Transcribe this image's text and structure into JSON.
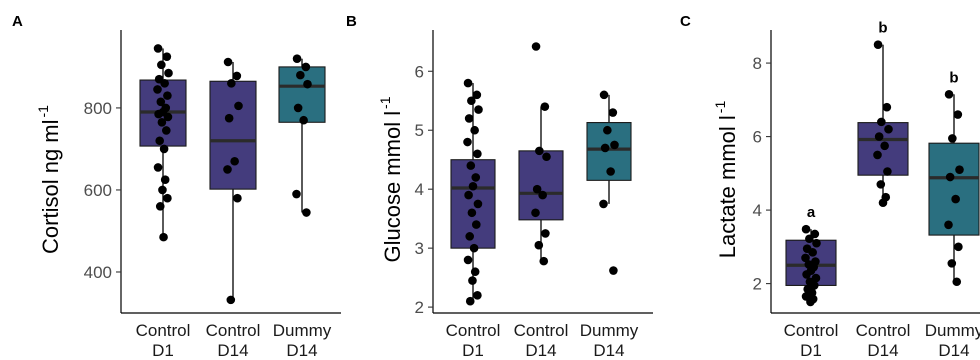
{
  "colors": {
    "control_fill": "#443C7D",
    "dummy_fill": "#2A6F80",
    "point": "#000000",
    "median": "#2B2B2B"
  },
  "chart_data": [
    {
      "type": "box",
      "panel": "A",
      "ylabel": "Cortisol ng ml",
      "ylabel_sup": "-1",
      "ylim": [
        300,
        990
      ],
      "yticks": [
        400,
        600,
        800
      ],
      "groups": [
        {
          "line1": "Control",
          "line2": "D1",
          "color_key": "control_fill",
          "whisker_low": 485,
          "q1": 707,
          "median": 790,
          "q3": 868,
          "whisker_high": 945,
          "points": [
            945,
            925,
            905,
            885,
            870,
            860,
            845,
            830,
            815,
            800,
            790,
            785,
            778,
            765,
            745,
            720,
            700,
            655,
            625,
            600,
            580,
            560,
            485
          ]
        },
        {
          "line1": "Control",
          "line2": "D14",
          "color_key": "control_fill",
          "whisker_low": 332,
          "q1": 602,
          "median": 720,
          "q3": 865,
          "whisker_high": 912,
          "points": [
            912,
            878,
            860,
            805,
            775,
            670,
            650,
            580,
            332
          ]
        },
        {
          "line1": "Dummy",
          "line2": "D14",
          "color_key": "dummy_fill",
          "whisker_low": 545,
          "q1": 765,
          "median": 853,
          "q3": 900,
          "whisker_high": 920,
          "points": [
            920,
            900,
            880,
            858,
            800,
            770,
            590,
            545
          ]
        }
      ]
    },
    {
      "type": "box",
      "panel": "B",
      "ylabel": "Glucose mmol l",
      "ylabel_sup": "-1",
      "ylim": [
        1.9,
        6.7
      ],
      "yticks": [
        2,
        3,
        4,
        5,
        6
      ],
      "groups": [
        {
          "line1": "Control",
          "line2": "D1",
          "color_key": "control_fill",
          "whisker_low": 2.1,
          "q1": 3.0,
          "median": 4.02,
          "q3": 4.5,
          "whisker_high": 5.8,
          "points": [
            5.8,
            5.6,
            5.5,
            5.35,
            5.2,
            5.0,
            4.8,
            4.6,
            4.4,
            4.2,
            4.05,
            3.9,
            3.75,
            3.6,
            3.4,
            3.2,
            3.0,
            2.8,
            2.6,
            2.45,
            2.2,
            2.1
          ]
        },
        {
          "line1": "Control",
          "line2": "D14",
          "color_key": "control_fill",
          "whisker_low": 2.78,
          "q1": 3.48,
          "median": 3.93,
          "q3": 4.65,
          "whisker_high": 5.4,
          "points": [
            6.42,
            5.4,
            4.65,
            4.55,
            4.0,
            3.9,
            3.6,
            3.25,
            3.05,
            2.78
          ]
        },
        {
          "line1": "Dummy",
          "line2": "D14",
          "color_key": "dummy_fill",
          "whisker_low": 3.75,
          "q1": 4.15,
          "median": 4.68,
          "q3": 5.13,
          "whisker_high": 5.6,
          "points": [
            5.6,
            5.3,
            5.0,
            4.75,
            4.7,
            4.3,
            3.75,
            2.62
          ]
        }
      ]
    },
    {
      "type": "box",
      "panel": "C",
      "ylabel": "Lactate mmol l",
      "ylabel_sup": "-1",
      "ylim": [
        1.2,
        8.9
      ],
      "yticks": [
        2,
        4,
        6,
        8
      ],
      "groups": [
        {
          "line1": "Control",
          "line2": "D1",
          "color_key": "control_fill",
          "sig": "a",
          "whisker_low": 1.5,
          "q1": 1.95,
          "median": 2.5,
          "q3": 3.18,
          "whisker_high": 3.48,
          "points": [
            3.48,
            3.35,
            3.22,
            3.1,
            2.95,
            2.85,
            2.7,
            2.6,
            2.52,
            2.45,
            2.35,
            2.25,
            2.15,
            2.05,
            1.95,
            1.85,
            1.75,
            1.65,
            1.58,
            1.5
          ]
        },
        {
          "line1": "Control",
          "line2": "D14",
          "color_key": "control_fill",
          "sig": "b",
          "whisker_low": 4.2,
          "q1": 4.95,
          "median": 5.92,
          "q3": 6.38,
          "whisker_high": 8.5,
          "points": [
            8.5,
            6.8,
            6.4,
            6.2,
            6.0,
            5.75,
            5.5,
            5.05,
            4.7,
            4.35,
            4.2
          ]
        },
        {
          "line1": "Dummy",
          "line2": "D14",
          "color_key": "dummy_fill",
          "sig": "b",
          "whisker_low": 2.05,
          "q1": 3.32,
          "median": 4.88,
          "q3": 5.82,
          "whisker_high": 7.15,
          "points": [
            7.15,
            6.6,
            5.95,
            5.1,
            4.9,
            4.3,
            3.6,
            3.0,
            2.55,
            2.05
          ]
        }
      ]
    }
  ]
}
